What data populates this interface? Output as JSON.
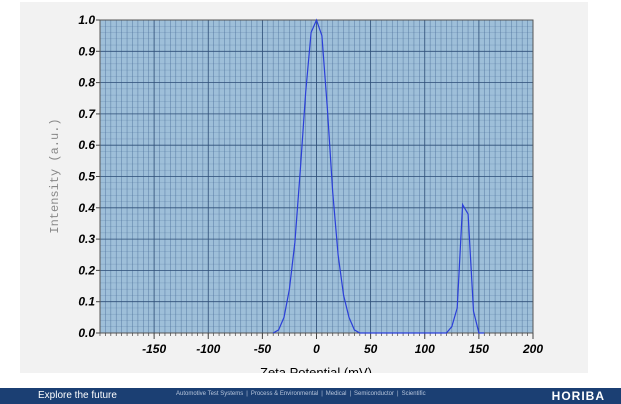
{
  "chart_data": {
    "type": "line",
    "title": "",
    "xlabel": "Zeta Potential (mV)",
    "ylabel": "Intensity (a.u.)",
    "xlim": [
      -200,
      200
    ],
    "ylim": [
      0,
      1.0
    ],
    "x_ticks": [
      -150,
      -100,
      -50,
      0,
      50,
      100,
      150,
      200
    ],
    "x_tick_labels": [
      "-150",
      "-100",
      "-50",
      "0",
      "50",
      "100",
      "150",
      "200"
    ],
    "y_ticks": [
      0,
      0.1,
      0.2,
      0.3,
      0.4,
      0.5,
      0.6,
      0.7,
      0.8,
      0.9,
      1.0
    ],
    "y_tick_labels": [
      "0.0",
      "0.1",
      "0.2",
      "0.3",
      "0.4",
      "0.5",
      "0.6",
      "0.7",
      "0.8",
      "0.9",
      "1.0"
    ],
    "grid": true,
    "legend": "none",
    "colors": {
      "plot_bg": "#9ebfd9",
      "grid": "#4a6e98",
      "line": "#2b3fd8"
    },
    "series": [
      {
        "x": [
          -40,
          -35,
          -30,
          -25,
          -20,
          -15,
          -10,
          -5,
          0,
          5,
          10,
          15,
          20,
          25,
          30,
          35,
          40,
          120,
          125,
          130,
          135,
          140,
          145,
          150,
          155
        ],
        "y": [
          0.0,
          0.01,
          0.05,
          0.14,
          0.29,
          0.52,
          0.77,
          0.96,
          1.0,
          0.95,
          0.72,
          0.45,
          0.25,
          0.12,
          0.05,
          0.01,
          0.0,
          0.0,
          0.02,
          0.08,
          0.41,
          0.38,
          0.07,
          0.0,
          0.0
        ]
      }
    ]
  },
  "footer": {
    "tagline": "Explore the future",
    "nav": [
      "Automotive Test Systems",
      "Process & Environmental",
      "Medical",
      "Semiconductor",
      "Scientific"
    ],
    "separator": "|",
    "logo": "HORIBA"
  }
}
